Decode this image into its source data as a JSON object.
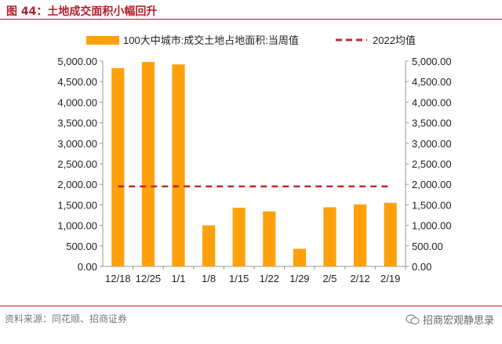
{
  "figure": {
    "title": "图 44：土地成交面积小幅回升",
    "source": "资料来源：同花顺、招商证券",
    "watermark": "招商宏观静思录"
  },
  "colors": {
    "bar": "#FFA10C",
    "avg_line": "#C0282E",
    "title": "#B0202A"
  },
  "chart_data": {
    "type": "bar",
    "categories": [
      "12/18",
      "12/25",
      "1/1",
      "1/8",
      "1/15",
      "1/22",
      "1/29",
      "2/5",
      "2/12",
      "2/19"
    ],
    "series": [
      {
        "name": "100大中城市:成交土地占地面积:当周值",
        "type": "bar",
        "values": [
          4830,
          4980,
          4920,
          1000,
          1430,
          1340,
          430,
          1440,
          1510,
          1550
        ]
      },
      {
        "name": "2022均值",
        "type": "dashed-line",
        "value": 1950
      }
    ],
    "ylim": [
      0,
      5000
    ],
    "yticks": [
      "0.00",
      "500.00",
      "1,000.00",
      "1,500.00",
      "2,000.00",
      "2,500.00",
      "3,000.00",
      "3,500.00",
      "4,000.00",
      "4,500.00",
      "5,000.00"
    ],
    "ytick_values": [
      0,
      500,
      1000,
      1500,
      2000,
      2500,
      3000,
      3500,
      4000,
      4500,
      5000
    ],
    "grid": false,
    "legend_position": "top"
  }
}
